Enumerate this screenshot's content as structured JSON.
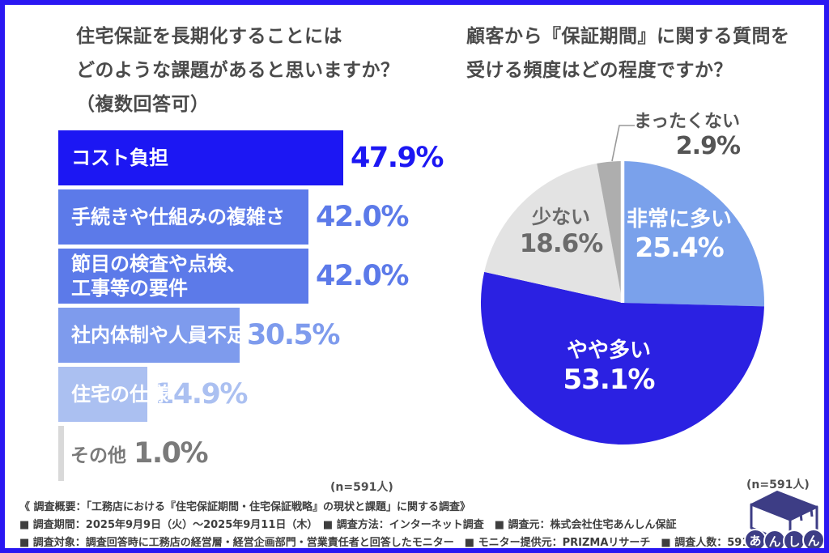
{
  "frame_color": "#2a17f2",
  "chart_data": [
    {
      "type": "bar",
      "orientation": "horizontal",
      "title": "住宅保証を長期化することにはどのような課題があると思いますか？（複数回答可）",
      "title_lines": [
        "住宅保証を長期化することには",
        "どのような課題があると思いますか？",
        "（複数回答可）"
      ],
      "unit": "%",
      "xlim": [
        0,
        50
      ],
      "n_label": "(n=591人)",
      "categories": [
        "コスト負担",
        "手続きや仕組みの複雑さ",
        "節目の検査や点検、工事等の要件",
        "社内体制や人員不足",
        "住宅の仕様",
        "その他"
      ],
      "values": [
        47.9,
        42.0,
        42.0,
        30.5,
        14.9,
        1.0
      ],
      "bars": [
        {
          "label": "コスト負担",
          "value": 47.9,
          "value_text": "47.9%",
          "bar_color": "#1c17f3",
          "value_color": "#1c17f3",
          "label_color": "#ffffff"
        },
        {
          "label": "手続きや仕組みの複雑さ",
          "value": 42.0,
          "value_text": "42.0%",
          "bar_color": "#5c7ae9",
          "value_color": "#5c7ae9",
          "label_color": "#ffffff"
        },
        {
          "label": "節目の検査や点検、",
          "label2": "工事等の要件",
          "value": 42.0,
          "value_text": "42.0%",
          "bar_color": "#5c7ae9",
          "value_color": "#5c7ae9",
          "label_color": "#ffffff"
        },
        {
          "label": "社内体制や人員不足",
          "value": 30.5,
          "value_text": "30.5%",
          "bar_color": "#7e9bed",
          "value_color": "#7e9bed",
          "label_color": "#ffffff"
        },
        {
          "label": "住宅の仕様",
          "value": 14.9,
          "value_text": "14.9%",
          "bar_color": "#abc0f1",
          "value_color": "#abc0f1",
          "label_color": "#ffffff"
        },
        {
          "label": "その他",
          "value": 1.0,
          "value_text": "1.0%",
          "bar_color": "#d9d9d9",
          "value_color": "#7a7a7a",
          "label_color": "#7a7a7a",
          "label_outside": true
        }
      ]
    },
    {
      "type": "pie",
      "title": "顧客から『保証期間』に関する質問を受ける頻度はどの程度ですか？",
      "title_lines": [
        "顧客から『保証期間』に関する質問を",
        "受ける頻度はどの程度ですか？"
      ],
      "n_label": "(n=591人)",
      "labels": [
        "非常に多い",
        "やや多い",
        "少ない",
        "まったくない"
      ],
      "values": [
        25.4,
        53.1,
        18.6,
        2.9
      ],
      "slices": [
        {
          "label": "非常に多い",
          "value": 25.4,
          "value_text": "25.4%",
          "color": "#7aa1eb",
          "text_color": "#ffffff"
        },
        {
          "label": "やや多い",
          "value": 53.1,
          "value_text": "53.1%",
          "color": "#2b21e2",
          "text_color": "#ffffff"
        },
        {
          "label": "少ない",
          "value": 18.6,
          "value_text": "18.6%",
          "color": "#e3e3e3",
          "text_color": "#6a6a6a"
        },
        {
          "label": "まったくない",
          "value": 2.9,
          "value_text": "2.9%",
          "color": "#aeaeae",
          "text_color": "#555555"
        }
      ]
    }
  ],
  "footer": {
    "lines": [
      "《 調査概要：「工務店における『住宅保証期間・住宅保証戦略』の現状と課題」に関する調査》",
      "■ 調査期間：2025年9月9日（火）〜2025年9月11日（木）　■ 調査方法：インターネット調査　■ 調査元：株式会社住宅あんしん保証",
      "■ 調査対象：調査回答時に工務店の経営層・経営企画部門・営業責任者と回答したモニター　■ モニター提供元：PRIZMAリサーチ　■ 調査人数：591人"
    ]
  },
  "logo": {
    "letters": [
      "あ",
      "ん",
      "し",
      "ん"
    ],
    "color": "#3d3d85"
  }
}
